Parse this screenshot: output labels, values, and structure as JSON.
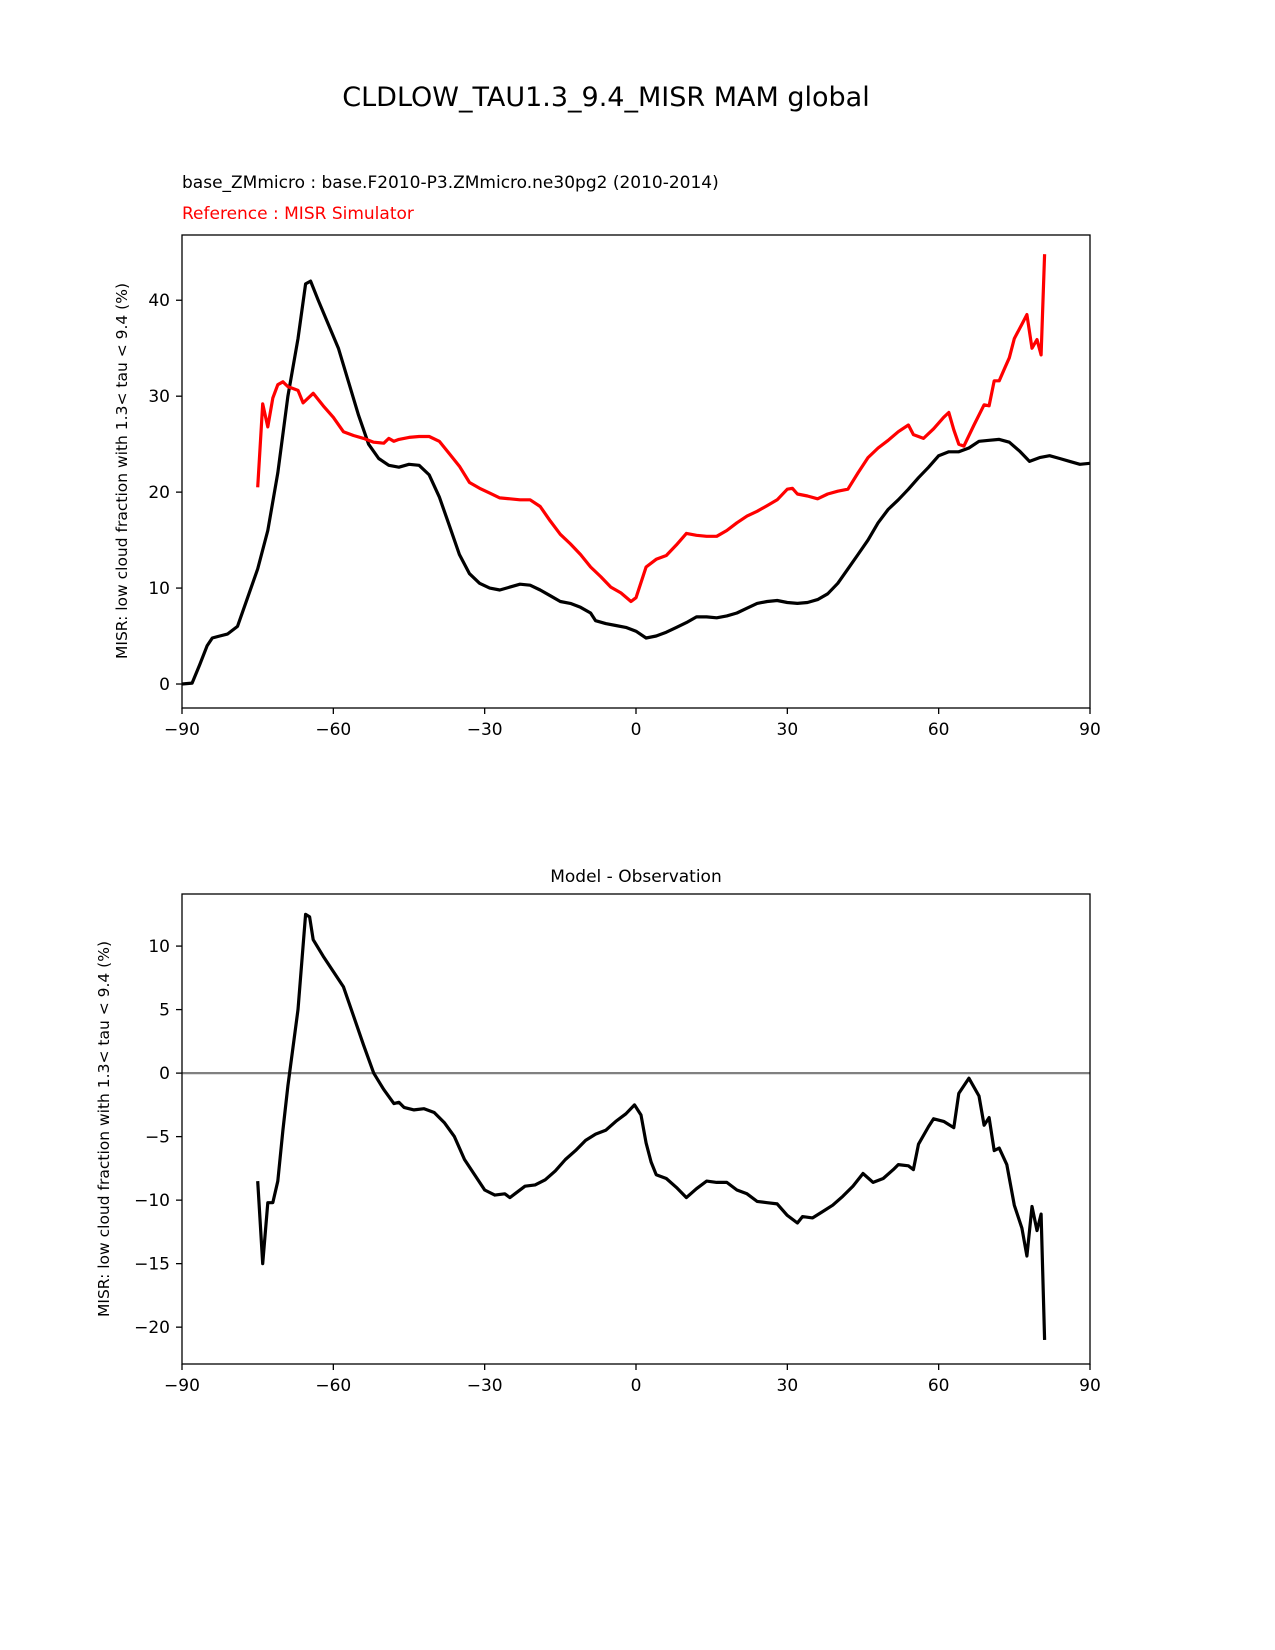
{
  "figure_title": "CLDLOW_TAU1.3_9.4_MISR MAM global",
  "chart_data": [
    {
      "type": "line",
      "subtitle_model": "base_ZMmicro : base.F2010-P3.ZMmicro.ne30pg2 (2010-2014)",
      "subtitle_reference": "Reference : MISR Simulator",
      "xlabel": "",
      "ylabel": "MISR: low cloud fraction with 1.3< tau < 9.4 (%)",
      "xlim": [
        -90,
        90
      ],
      "ylim": [
        -2.5,
        46.8
      ],
      "xticks": [
        -90,
        -60,
        -30,
        0,
        30,
        60,
        90
      ],
      "xtick_labels": [
        "−90",
        "−60",
        "−30",
        "0",
        "30",
        "60",
        "90"
      ],
      "yticks": [
        0,
        10,
        20,
        30,
        40
      ],
      "ytick_labels": [
        "0",
        "10",
        "20",
        "30",
        "40"
      ],
      "series": [
        {
          "name": "base_ZMmicro",
          "color": "#000000",
          "x": [
            -90,
            -88,
            -86.5,
            -85,
            -84,
            -82.5,
            -81,
            -79,
            -77,
            -75,
            -73,
            -71,
            -69,
            -67,
            -65.5,
            -64.5,
            -63,
            -61,
            -59,
            -57,
            -55,
            -53,
            -51,
            -49,
            -47,
            -45,
            -43,
            -41,
            -39,
            -37,
            -35,
            -33,
            -31,
            -29,
            -27,
            -25,
            -23,
            -21,
            -19,
            -17,
            -15,
            -13,
            -11,
            -9,
            -8,
            -6,
            -4,
            -2,
            0,
            2,
            4,
            6,
            8,
            10,
            12,
            14,
            16,
            18,
            20,
            22,
            24,
            26,
            28,
            30,
            32,
            34,
            36,
            38,
            40,
            42,
            44,
            46,
            48,
            50,
            52,
            54,
            56,
            58,
            60,
            62,
            64,
            66,
            68,
            70,
            72,
            74,
            76,
            78,
            80,
            82,
            84,
            86,
            88,
            90
          ],
          "y": [
            0,
            0.1,
            2,
            4,
            4.8,
            5.0,
            5.2,
            6,
            9,
            12,
            16,
            22,
            30,
            36,
            41.7,
            42,
            40,
            37.5,
            35,
            31.5,
            28,
            25,
            23.5,
            22.8,
            22.6,
            22.9,
            22.8,
            21.8,
            19.5,
            16.5,
            13.5,
            11.5,
            10.5,
            10.0,
            9.8,
            10.1,
            10.4,
            10.3,
            9.8,
            9.2,
            8.6,
            8.4,
            8.0,
            7.4,
            6.6,
            6.3,
            6.1,
            5.9,
            5.5,
            4.8,
            5.0,
            5.4,
            5.9,
            6.4,
            7.0,
            7.0,
            6.9,
            7.1,
            7.4,
            7.9,
            8.4,
            8.6,
            8.7,
            8.5,
            8.4,
            8.5,
            8.8,
            9.4,
            10.5,
            12,
            13.5,
            15,
            16.8,
            18.2,
            19.2,
            20.3,
            21.5,
            22.6,
            23.8,
            24.2,
            24.2,
            24.6,
            25.3,
            25.4,
            25.5,
            25.2,
            24.3,
            23.2,
            23.6,
            23.8,
            23.5,
            23.2,
            22.9,
            23.0
          ]
        },
        {
          "name": "MISR Simulator",
          "color": "#ff0000",
          "x": [
            -75,
            -74,
            -73,
            -72,
            -71,
            -70,
            -69,
            -67,
            -66,
            -64,
            -62,
            -60,
            -58,
            -56,
            -54,
            -52,
            -50,
            -49,
            -48,
            -47,
            -45,
            -43,
            -41,
            -39,
            -37,
            -35,
            -33,
            -31,
            -29,
            -27,
            -25,
            -23,
            -21,
            -19,
            -17,
            -15,
            -13,
            -11,
            -9,
            -7,
            -5,
            -3,
            -1,
            0,
            2,
            4,
            6,
            8,
            10,
            12,
            14,
            16,
            18,
            20,
            22,
            24,
            26,
            28,
            30,
            31,
            32,
            34,
            36,
            38,
            40,
            42,
            44,
            46,
            48,
            50,
            52,
            54,
            55,
            57,
            59,
            61,
            62,
            63,
            64,
            65,
            67,
            69,
            70,
            71,
            72,
            73,
            74,
            75,
            76.5,
            77.5,
            78.5,
            79.5,
            80.3,
            81
          ],
          "y": [
            20.5,
            29.2,
            26.8,
            29.8,
            31.2,
            31.5,
            31.0,
            30.6,
            29.3,
            30.3,
            29,
            27.8,
            26.3,
            25.9,
            25.6,
            25.2,
            25.1,
            25.6,
            25.3,
            25.5,
            25.7,
            25.8,
            25.8,
            25.3,
            24,
            22.7,
            21,
            20.4,
            19.9,
            19.4,
            19.3,
            19.2,
            19.2,
            18.5,
            17,
            15.6,
            14.6,
            13.5,
            12.2,
            11.2,
            10.1,
            9.5,
            8.6,
            9.0,
            12.2,
            13,
            13.4,
            14.5,
            15.7,
            15.5,
            15.4,
            15.4,
            16,
            16.8,
            17.5,
            18.0,
            18.6,
            19.2,
            20.3,
            20.4,
            19.8,
            19.6,
            19.3,
            19.8,
            20.1,
            20.3,
            22,
            23.6,
            24.6,
            25.4,
            26.3,
            27,
            26,
            25.6,
            26.6,
            27.8,
            28.3,
            26.5,
            25,
            24.8,
            27,
            29.1,
            29.0,
            31.6,
            31.6,
            32.8,
            34,
            36,
            37.5,
            38.5,
            35,
            35.9,
            34.3,
            44.8
          ]
        }
      ]
    },
    {
      "type": "line",
      "title": "Model - Observation",
      "xlabel": "",
      "ylabel": "MISR: low cloud fraction with 1.3< tau < 9.4 (%)",
      "xlim": [
        -90,
        90
      ],
      "ylim": [
        -22.9,
        14.1
      ],
      "xticks": [
        -90,
        -60,
        -30,
        0,
        30,
        60,
        90
      ],
      "xtick_labels": [
        "−90",
        "−60",
        "−30",
        "0",
        "30",
        "60",
        "90"
      ],
      "yticks": [
        -20,
        -15,
        -10,
        -5,
        0,
        5,
        10
      ],
      "ytick_labels": [
        "−20",
        "−15",
        "−10",
        "−5",
        "0",
        "5",
        "10"
      ],
      "reference_line": {
        "y": 0,
        "color": "#808080"
      },
      "series": [
        {
          "name": "Model - Observation",
          "color": "#000000",
          "x": [
            -75,
            -74,
            -73,
            -72,
            -71,
            -70,
            -69,
            -67,
            -65.5,
            -64.7,
            -64,
            -62,
            -60,
            -58,
            -56,
            -54,
            -52,
            -50,
            -48,
            -47,
            -46,
            -44,
            -42,
            -40,
            -38,
            -36,
            -34,
            -32,
            -30,
            -28,
            -26,
            -25,
            -24,
            -22,
            -20,
            -18,
            -16,
            -14,
            -12,
            -10,
            -8,
            -6,
            -4,
            -2,
            -0.3,
            1,
            2,
            3,
            4,
            6,
            8,
            10,
            12,
            14,
            16,
            18,
            20,
            22,
            24,
            26,
            28,
            30,
            32,
            33,
            35,
            37,
            39,
            41,
            43,
            45,
            47,
            49,
            51,
            52,
            54,
            55,
            56,
            58,
            59,
            61,
            63,
            64,
            66,
            68,
            69,
            70,
            71,
            72,
            73.5,
            75,
            76.5,
            77.5,
            78.5,
            79.5,
            80.3,
            81
          ],
          "y": [
            -8.5,
            -15,
            -10.2,
            -10.2,
            -8.5,
            -4.5,
            -1,
            5,
            12.5,
            12.3,
            10.5,
            9.2,
            8,
            6.8,
            4.5,
            2.2,
            0,
            -1.3,
            -2.4,
            -2.3,
            -2.7,
            -2.9,
            -2.8,
            -3.1,
            -3.9,
            -5,
            -6.8,
            -8,
            -9.2,
            -9.6,
            -9.5,
            -9.8,
            -9.5,
            -8.9,
            -8.8,
            -8.4,
            -7.7,
            -6.8,
            -6.1,
            -5.3,
            -4.8,
            -4.5,
            -3.8,
            -3.2,
            -2.5,
            -3.3,
            -5.5,
            -7,
            -8,
            -8.3,
            -9.0,
            -9.8,
            -9.1,
            -8.5,
            -8.6,
            -8.6,
            -9.2,
            -9.5,
            -10.1,
            -10.2,
            -10.3,
            -11.2,
            -11.8,
            -11.3,
            -11.4,
            -10.9,
            -10.4,
            -9.7,
            -8.9,
            -7.9,
            -8.6,
            -8.3,
            -7.6,
            -7.2,
            -7.3,
            -7.6,
            -5.6,
            -4.2,
            -3.6,
            -3.8,
            -4.3,
            -1.6,
            -0.4,
            -1.8,
            -4.1,
            -3.5,
            -6.1,
            -5.9,
            -7.2,
            -10.4,
            -12.2,
            -14.4,
            -10.5,
            -12.4,
            -11.1,
            -21
          ]
        }
      ]
    }
  ]
}
